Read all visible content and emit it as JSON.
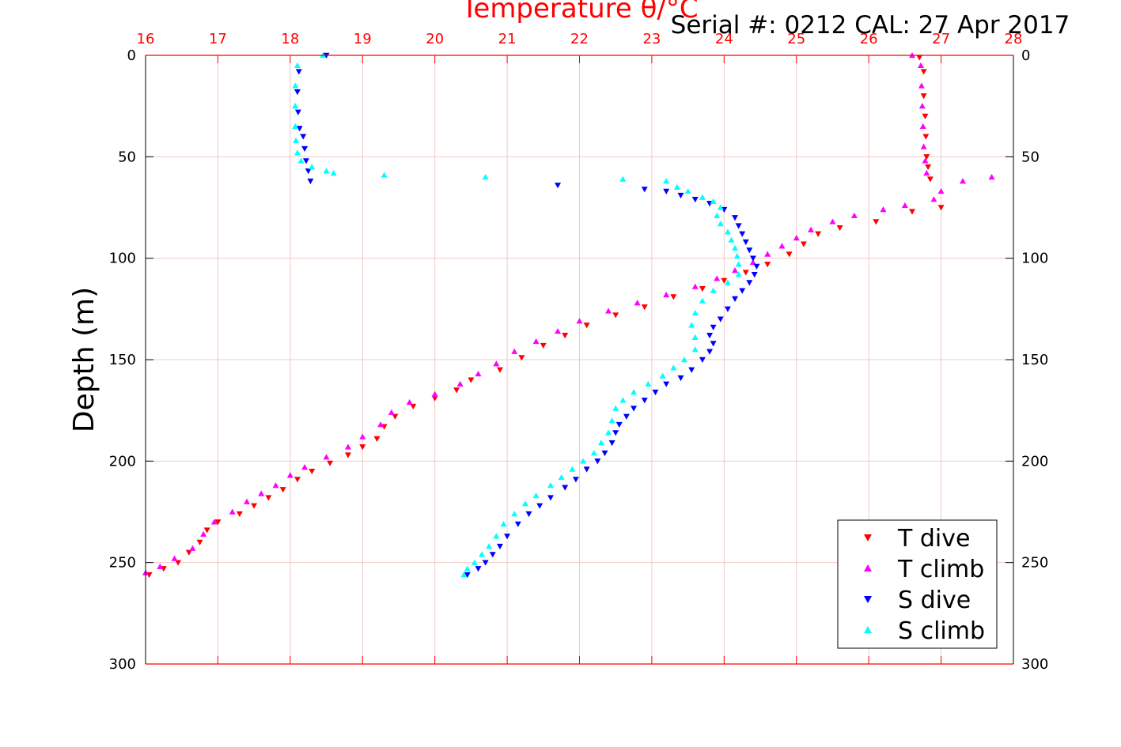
{
  "chart_data": {
    "type": "scatter",
    "title": "Temperature θ/°C",
    "annotation": "Serial #: 0212  CAL: 27 Apr 2017",
    "xlabel": "Temperature θ/°C",
    "ylabel": "Depth (m)",
    "xlim": [
      16,
      28
    ],
    "ylim": [
      0,
      300
    ],
    "y_reversed": true,
    "x_ticks": [
      "16",
      "17",
      "18",
      "19",
      "20",
      "21",
      "22",
      "23",
      "24",
      "25",
      "26",
      "27",
      "28"
    ],
    "y_ticks": [
      "0",
      "50",
      "100",
      "150",
      "200",
      "250",
      "300"
    ],
    "grid": true,
    "legend_position": "bottom-right",
    "colors": {
      "axes": "#ff0000",
      "grid": "#f2c8c8",
      "text": "#000000"
    },
    "series": [
      {
        "name": "T dive",
        "color": "#ff0000",
        "marker": "triangle-down",
        "points": [
          [
            26.7,
            1
          ],
          [
            26.76,
            8
          ],
          [
            26.76,
            20
          ],
          [
            26.78,
            30
          ],
          [
            26.79,
            40
          ],
          [
            26.8,
            50
          ],
          [
            26.82,
            55
          ],
          [
            26.85,
            61
          ],
          [
            27.0,
            75
          ],
          [
            26.6,
            77
          ],
          [
            26.1,
            82
          ],
          [
            25.6,
            85
          ],
          [
            25.3,
            88
          ],
          [
            25.1,
            93
          ],
          [
            24.9,
            98
          ],
          [
            24.6,
            103
          ],
          [
            24.3,
            107
          ],
          [
            24.0,
            111
          ],
          [
            23.7,
            115
          ],
          [
            23.3,
            119
          ],
          [
            22.9,
            124
          ],
          [
            22.5,
            128
          ],
          [
            22.1,
            133
          ],
          [
            21.8,
            138
          ],
          [
            21.5,
            143
          ],
          [
            21.2,
            149
          ],
          [
            20.9,
            155
          ],
          [
            20.5,
            160
          ],
          [
            20.3,
            165
          ],
          [
            20.0,
            169
          ],
          [
            19.7,
            173
          ],
          [
            19.45,
            178
          ],
          [
            19.3,
            183
          ],
          [
            19.2,
            189
          ],
          [
            19.0,
            193
          ],
          [
            18.8,
            197
          ],
          [
            18.55,
            201
          ],
          [
            18.3,
            205
          ],
          [
            18.1,
            209
          ],
          [
            17.9,
            214
          ],
          [
            17.7,
            218
          ],
          [
            17.5,
            222
          ],
          [
            17.3,
            226
          ],
          [
            17.0,
            230
          ],
          [
            16.85,
            234
          ],
          [
            16.75,
            240
          ],
          [
            16.6,
            245
          ],
          [
            16.45,
            250
          ],
          [
            16.25,
            253
          ],
          [
            16.05,
            256
          ]
        ]
      },
      {
        "name": "T climb",
        "color": "#ff00ff",
        "marker": "triangle-up",
        "points": [
          [
            26.6,
            0
          ],
          [
            26.72,
            5
          ],
          [
            26.73,
            15
          ],
          [
            26.74,
            25
          ],
          [
            26.75,
            35
          ],
          [
            26.76,
            45
          ],
          [
            26.78,
            52
          ],
          [
            26.8,
            58
          ],
          [
            27.7,
            60
          ],
          [
            27.3,
            62
          ],
          [
            27.0,
            67
          ],
          [
            26.9,
            71
          ],
          [
            26.5,
            74
          ],
          [
            26.2,
            76
          ],
          [
            25.8,
            79
          ],
          [
            25.5,
            82
          ],
          [
            25.2,
            86
          ],
          [
            25.0,
            90
          ],
          [
            24.8,
            94
          ],
          [
            24.6,
            98
          ],
          [
            24.4,
            102
          ],
          [
            24.15,
            106
          ],
          [
            23.9,
            110
          ],
          [
            23.6,
            114
          ],
          [
            23.2,
            118
          ],
          [
            22.8,
            122
          ],
          [
            22.4,
            126
          ],
          [
            22.0,
            131
          ],
          [
            21.7,
            136
          ],
          [
            21.4,
            141
          ],
          [
            21.1,
            146
          ],
          [
            20.85,
            152
          ],
          [
            20.6,
            157
          ],
          [
            20.35,
            162
          ],
          [
            20.0,
            167
          ],
          [
            19.65,
            171
          ],
          [
            19.4,
            176
          ],
          [
            19.25,
            182
          ],
          [
            19.0,
            188
          ],
          [
            18.8,
            193
          ],
          [
            18.5,
            198
          ],
          [
            18.2,
            203
          ],
          [
            18.0,
            207
          ],
          [
            17.8,
            212
          ],
          [
            17.6,
            216
          ],
          [
            17.4,
            220
          ],
          [
            17.2,
            225
          ],
          [
            16.95,
            230
          ],
          [
            16.8,
            236
          ],
          [
            16.65,
            243
          ],
          [
            16.4,
            248
          ],
          [
            16.2,
            252
          ],
          [
            16.0,
            255
          ]
        ]
      },
      {
        "name": "S dive",
        "color": "#0000ff",
        "marker": "triangle-down",
        "points": [
          [
            18.5,
            0
          ],
          [
            18.12,
            8
          ],
          [
            18.1,
            18
          ],
          [
            18.11,
            28
          ],
          [
            18.13,
            36
          ],
          [
            18.18,
            40
          ],
          [
            18.2,
            46
          ],
          [
            18.22,
            52
          ],
          [
            18.25,
            57
          ],
          [
            18.28,
            62
          ],
          [
            21.7,
            64
          ],
          [
            22.9,
            66
          ],
          [
            23.2,
            67
          ],
          [
            23.4,
            69
          ],
          [
            23.6,
            71
          ],
          [
            23.8,
            73
          ],
          [
            24.0,
            76
          ],
          [
            24.15,
            80
          ],
          [
            24.2,
            84
          ],
          [
            24.25,
            88
          ],
          [
            24.3,
            92
          ],
          [
            24.35,
            96
          ],
          [
            24.4,
            100
          ],
          [
            24.45,
            104
          ],
          [
            24.42,
            108
          ],
          [
            24.35,
            112
          ],
          [
            24.25,
            116
          ],
          [
            24.15,
            120
          ],
          [
            24.05,
            125
          ],
          [
            23.95,
            130
          ],
          [
            23.85,
            134
          ],
          [
            23.8,
            138
          ],
          [
            23.85,
            142
          ],
          [
            23.8,
            146
          ],
          [
            23.7,
            150
          ],
          [
            23.55,
            155
          ],
          [
            23.4,
            159
          ],
          [
            23.2,
            162
          ],
          [
            23.05,
            166
          ],
          [
            22.9,
            170
          ],
          [
            22.75,
            174
          ],
          [
            22.65,
            178
          ],
          [
            22.55,
            182
          ],
          [
            22.5,
            186
          ],
          [
            22.45,
            191
          ],
          [
            22.35,
            196
          ],
          [
            22.25,
            200
          ],
          [
            22.1,
            204
          ],
          [
            21.95,
            209
          ],
          [
            21.8,
            213
          ],
          [
            21.6,
            218
          ],
          [
            21.45,
            222
          ],
          [
            21.3,
            226
          ],
          [
            21.15,
            231
          ],
          [
            21.0,
            237
          ],
          [
            20.9,
            242
          ],
          [
            20.8,
            246
          ],
          [
            20.7,
            250
          ],
          [
            20.6,
            253
          ],
          [
            20.45,
            256
          ]
        ]
      },
      {
        "name": "S climb",
        "color": "#00ffff",
        "marker": "triangle-up",
        "points": [
          [
            18.45,
            0
          ],
          [
            18.1,
            5
          ],
          [
            18.07,
            15
          ],
          [
            18.07,
            25
          ],
          [
            18.07,
            35
          ],
          [
            18.08,
            42
          ],
          [
            18.1,
            48
          ],
          [
            18.15,
            52
          ],
          [
            18.3,
            55
          ],
          [
            18.5,
            57
          ],
          [
            18.6,
            58
          ],
          [
            19.3,
            59
          ],
          [
            20.7,
            60
          ],
          [
            22.6,
            61
          ],
          [
            23.2,
            62
          ],
          [
            23.35,
            65
          ],
          [
            23.5,
            67
          ],
          [
            23.7,
            70
          ],
          [
            23.85,
            72
          ],
          [
            23.95,
            75
          ],
          [
            23.9,
            79
          ],
          [
            23.95,
            83
          ],
          [
            24.05,
            87
          ],
          [
            24.1,
            91
          ],
          [
            24.15,
            95
          ],
          [
            24.18,
            99
          ],
          [
            24.2,
            103
          ],
          [
            24.2,
            108
          ],
          [
            24.05,
            112
          ],
          [
            23.85,
            116
          ],
          [
            23.7,
            121
          ],
          [
            23.6,
            127
          ],
          [
            23.55,
            133
          ],
          [
            23.6,
            139
          ],
          [
            23.6,
            145
          ],
          [
            23.45,
            150
          ],
          [
            23.3,
            154
          ],
          [
            23.15,
            158
          ],
          [
            22.95,
            162
          ],
          [
            22.75,
            166
          ],
          [
            22.6,
            170
          ],
          [
            22.5,
            174
          ],
          [
            22.45,
            180
          ],
          [
            22.4,
            186
          ],
          [
            22.3,
            191
          ],
          [
            22.2,
            196
          ],
          [
            22.05,
            200
          ],
          [
            21.9,
            204
          ],
          [
            21.75,
            208
          ],
          [
            21.6,
            212
          ],
          [
            21.4,
            217
          ],
          [
            21.25,
            221
          ],
          [
            21.1,
            226
          ],
          [
            20.95,
            231
          ],
          [
            20.85,
            237
          ],
          [
            20.75,
            242
          ],
          [
            20.65,
            246
          ],
          [
            20.55,
            250
          ],
          [
            20.45,
            253
          ],
          [
            20.4,
            256
          ]
        ]
      }
    ]
  }
}
